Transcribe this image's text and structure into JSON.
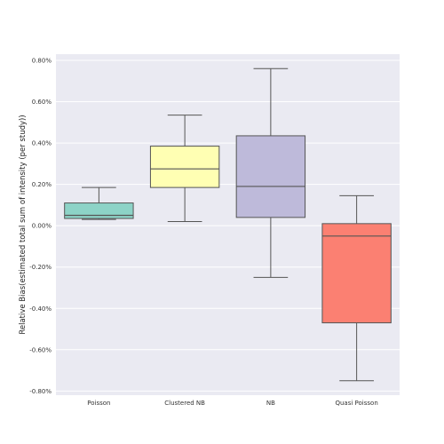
{
  "chart_data": {
    "type": "boxplot",
    "title": "",
    "xlabel": "",
    "ylabel": "Relative Bias(estimated total sum of intensity (per study))",
    "ylim": [
      -0.0082,
      0.0083
    ],
    "yticks": [
      -0.008,
      -0.006,
      -0.004,
      -0.002,
      0.0,
      0.002,
      0.004,
      0.006,
      0.008
    ],
    "ytick_labels": [
      "-0.80%",
      "-0.60%",
      "-0.40%",
      "-0.20%",
      "0.00%",
      "0.20%",
      "0.40%",
      "0.60%",
      "0.80%"
    ],
    "grid": true,
    "categories": [
      "Poisson",
      "Clustered NB",
      "NB",
      "Quasi Poisson"
    ],
    "boxes": [
      {
        "category": "Poisson",
        "whisker_low": 0.0003,
        "q1": 0.00035,
        "median": 0.0005,
        "q3": 0.0011,
        "whisker_high": 0.00185,
        "color": "#8dd3c7"
      },
      {
        "category": "Clustered NB",
        "whisker_low": 0.0002,
        "q1": 0.00185,
        "median": 0.00275,
        "q3": 0.00385,
        "whisker_high": 0.00535,
        "color": "#ffffb3"
      },
      {
        "category": "NB",
        "whisker_low": -0.0025,
        "q1": 0.0004,
        "median": 0.0019,
        "q3": 0.00435,
        "whisker_high": 0.0076,
        "color": "#bebada"
      },
      {
        "category": "Quasi Poisson",
        "whisker_low": -0.0075,
        "q1": -0.0047,
        "median": -0.0005,
        "q3": 0.0001,
        "whisker_high": 0.00145,
        "color": "#fb8072"
      }
    ]
  }
}
